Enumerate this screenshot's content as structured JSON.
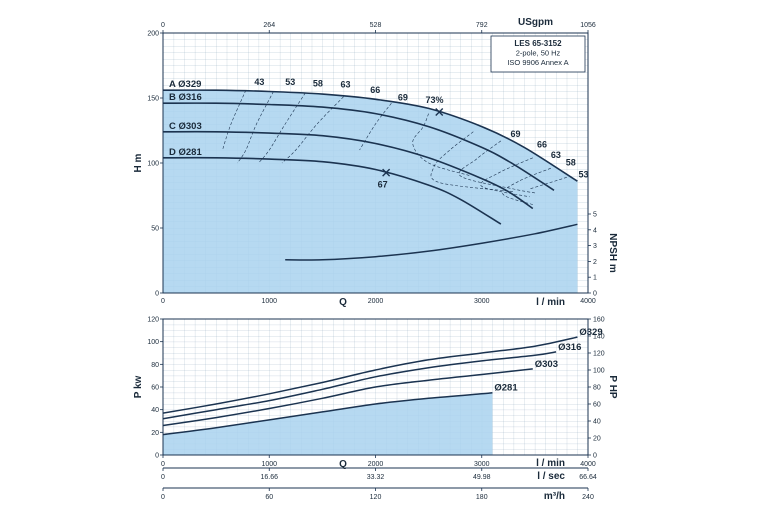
{
  "chart_data": [
    {
      "type": "line",
      "info_box": [
        "LES 65-3152",
        "2-pole, 50 Hz",
        "ISO 9906 Annex A"
      ],
      "ylabel": "H m",
      "y2label": "NPSH m",
      "xlabel": "Q",
      "x_unit": "l / min",
      "x2_unit": "USgpm",
      "xlim": [
        0,
        4000
      ],
      "ylim": [
        0,
        200
      ],
      "y2lim": [
        0,
        5
      ],
      "x_ticks": [
        0,
        1000,
        2000,
        3000,
        4000
      ],
      "y_ticks": [
        0,
        50,
        100,
        150,
        200
      ],
      "y2_ticks": [
        0,
        1,
        2,
        3,
        4,
        5
      ],
      "x2_ticks": [
        "0",
        "264",
        "528",
        "792",
        "1056"
      ],
      "series": [
        {
          "name": "A Ø329",
          "x": [
            0,
            500,
            1000,
            1500,
            2000,
            2500,
            3000,
            3400,
            3900
          ],
          "y": [
            156,
            156,
            155,
            153,
            149,
            142,
            128,
            112,
            86
          ]
        },
        {
          "name": "B Ø316",
          "x": [
            0,
            500,
            1000,
            1500,
            2000,
            2500,
            3000,
            3300,
            3680
          ],
          "y": [
            146,
            146,
            145,
            143,
            138,
            128,
            112,
            99,
            79
          ]
        },
        {
          "name": "C Ø303",
          "x": [
            0,
            500,
            1000,
            1500,
            2000,
            2500,
            3000,
            3250,
            3480
          ],
          "y": [
            124,
            124,
            123,
            121,
            115,
            104,
            88,
            78,
            65
          ]
        },
        {
          "name": "D Ø281",
          "x": [
            0,
            500,
            1000,
            1500,
            2000,
            2500,
            2800,
            3180
          ],
          "y": [
            104,
            104,
            103,
            101,
            95,
            83,
            72,
            53
          ]
        },
        {
          "name": "NPSH",
          "axis": "y2",
          "x": [
            1150,
            1500,
            2000,
            2500,
            3000,
            3500,
            3900
          ],
          "y": [
            2.1,
            2.1,
            2.3,
            2.65,
            3.15,
            3.75,
            4.35
          ]
        }
      ],
      "efficiency_labels": [
        "43",
        "53",
        "58",
        "63",
        "66",
        "69",
        "73%",
        "69",
        "66",
        "63",
        "58",
        "53",
        "67"
      ]
    },
    {
      "type": "line",
      "ylabel": "P kw",
      "y2label": "P HP",
      "xlabel": "Q",
      "ylim": [
        0,
        120
      ],
      "y2lim": [
        0,
        160
      ],
      "y_ticks": [
        0,
        20,
        40,
        60,
        80,
        100,
        120
      ],
      "y2_ticks": [
        0,
        20,
        40,
        60,
        80,
        100,
        120,
        140,
        160
      ],
      "x_axes": [
        {
          "unit": "l / min",
          "ticks": [
            "0",
            "1000",
            "2000",
            "3000",
            "4000"
          ]
        },
        {
          "unit": "l / sec",
          "ticks": [
            "0",
            "16.66",
            "33.32",
            "49.98",
            "66.64"
          ]
        },
        {
          "unit": "m³/h",
          "ticks": [
            "0",
            "60",
            "120",
            "180",
            "240"
          ]
        }
      ],
      "series": [
        {
          "name": "Ø329",
          "x": [
            0,
            500,
            1000,
            1500,
            2000,
            2500,
            3000,
            3500,
            3900
          ],
          "y": [
            37,
            45,
            54,
            64,
            75,
            84,
            90,
            96,
            104
          ]
        },
        {
          "name": "Ø316",
          "x": [
            0,
            500,
            1000,
            1500,
            2000,
            2500,
            3000,
            3500,
            3700
          ],
          "y": [
            32,
            40,
            48,
            58,
            69,
            77,
            83,
            88,
            91
          ]
        },
        {
          "name": "Ø303",
          "x": [
            0,
            500,
            1000,
            1500,
            2000,
            2500,
            3000,
            3480
          ],
          "y": [
            26,
            33,
            41,
            50,
            60,
            66,
            71,
            76
          ]
        },
        {
          "name": "Ø281",
          "x": [
            0,
            500,
            1000,
            1500,
            2000,
            2500,
            3000,
            3100
          ],
          "y": [
            18,
            24,
            31,
            38,
            45,
            50,
            54,
            55
          ]
        }
      ]
    }
  ]
}
